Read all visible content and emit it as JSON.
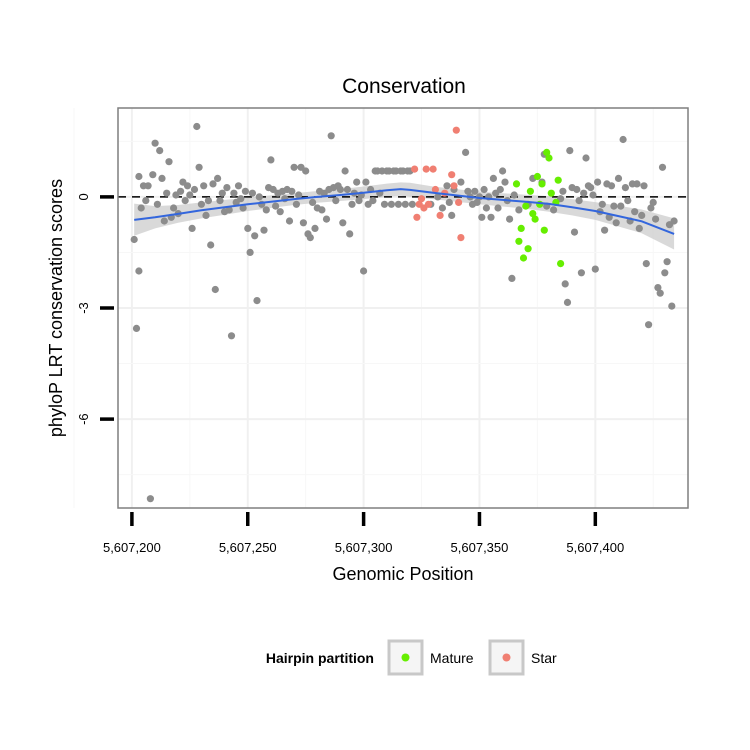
{
  "chart_data": {
    "type": "scatter",
    "title": "Conservation",
    "xlabel": "Genomic Position",
    "ylabel": "phyloP LRT conservation scores",
    "xlim": [
      5607194,
      5607440
    ],
    "ylim": [
      -8.4,
      2.4
    ],
    "x_ticks": [
      5607200,
      5607250,
      5607300,
      5607350,
      5607400
    ],
    "x_tick_labels": [
      "5,607,200",
      "5,607,250",
      "5,607,300",
      "5,607,350",
      "5,607,400"
    ],
    "y_ticks": [
      0,
      -3,
      -6
    ],
    "y_tick_labels": [
      "0",
      "-3",
      "-6"
    ],
    "grid": true,
    "reference_line": {
      "y": 0,
      "style": "dashed"
    },
    "colors": {
      "other": "#8c8c8c",
      "Mature": "#66ee00",
      "Star": "#f07f72",
      "smooth": "#3366dd",
      "band": "#cccccc"
    },
    "legend": {
      "title": "Hairpin partition",
      "position": "bottom",
      "entries": [
        {
          "label": "Mature",
          "color": "#66ee00"
        },
        {
          "label": "Star",
          "color": "#f07f72"
        }
      ]
    },
    "series": [
      {
        "values": [
          [
            5607201,
            -1.15
          ],
          [
            5607202,
            -3.55
          ],
          [
            5607203,
            -2.0
          ],
          [
            5607203,
            0.55
          ],
          [
            5607204,
            -0.3
          ],
          [
            5607205,
            0.3
          ],
          [
            5607206,
            -0.1
          ],
          [
            5607207,
            0.3
          ],
          [
            5607208,
            -8.15
          ],
          [
            5607209,
            0.6
          ],
          [
            5607210,
            1.45
          ],
          [
            5607211,
            -0.2
          ],
          [
            5607212,
            1.25
          ],
          [
            5607213,
            0.5
          ],
          [
            5607214,
            -0.65
          ],
          [
            5607215,
            0.1
          ],
          [
            5607216,
            0.95
          ],
          [
            5607217,
            -0.55
          ],
          [
            5607218,
            -0.3
          ],
          [
            5607219,
            0.05
          ],
          [
            5607220,
            -0.45
          ],
          [
            5607221,
            0.15
          ],
          [
            5607222,
            0.4
          ],
          [
            5607223,
            -0.1
          ],
          [
            5607224,
            0.3
          ],
          [
            5607225,
            0.05
          ],
          [
            5607226,
            -0.85
          ],
          [
            5607227,
            0.2
          ],
          [
            5607228,
            1.9
          ],
          [
            5607229,
            0.8
          ],
          [
            5607230,
            -0.2
          ],
          [
            5607231,
            0.3
          ],
          [
            5607232,
            -0.5
          ],
          [
            5607233,
            -0.1
          ],
          [
            5607234,
            -1.3
          ],
          [
            5607235,
            0.35
          ],
          [
            5607236,
            -2.5
          ],
          [
            5607237,
            0.5
          ],
          [
            5607238,
            -0.1
          ],
          [
            5607239,
            0.1
          ],
          [
            5607240,
            -0.4
          ],
          [
            5607241,
            0.25
          ],
          [
            5607242,
            -0.35
          ],
          [
            5607243,
            -3.75
          ],
          [
            5607244,
            0.1
          ],
          [
            5607245,
            -0.15
          ],
          [
            5607246,
            0.3
          ],
          [
            5607247,
            -0.05
          ],
          [
            5607248,
            -0.3
          ],
          [
            5607249,
            0.15
          ],
          [
            5607250,
            -0.85
          ],
          [
            5607251,
            -1.5
          ],
          [
            5607252,
            0.1
          ],
          [
            5607253,
            -1.05
          ],
          [
            5607254,
            -2.8
          ],
          [
            5607255,
            0.0
          ],
          [
            5607256,
            -0.2
          ],
          [
            5607257,
            -0.9
          ],
          [
            5607258,
            -0.35
          ],
          [
            5607259,
            0.25
          ],
          [
            5607260,
            1.0
          ],
          [
            5607261,
            0.2
          ],
          [
            5607262,
            -0.25
          ],
          [
            5607263,
            0.1
          ],
          [
            5607264,
            -0.4
          ],
          [
            5607265,
            0.15
          ],
          [
            5607266,
            -0.05
          ],
          [
            5607267,
            0.2
          ],
          [
            5607268,
            -0.65
          ],
          [
            5607269,
            0.15
          ],
          [
            5607270,
            0.8
          ],
          [
            5607271,
            -0.2
          ],
          [
            5607272,
            0.05
          ],
          [
            5607273,
            0.8
          ],
          [
            5607274,
            -0.7
          ],
          [
            5607275,
            0.7
          ],
          [
            5607276,
            -1.0
          ],
          [
            5607277,
            -1.1
          ],
          [
            5607278,
            -0.15
          ],
          [
            5607279,
            -0.85
          ],
          [
            5607280,
            -0.3
          ],
          [
            5607281,
            0.15
          ],
          [
            5607282,
            -0.35
          ],
          [
            5607283,
            0.1
          ],
          [
            5607284,
            -0.6
          ],
          [
            5607285,
            0.2
          ],
          [
            5607286,
            1.65
          ],
          [
            5607287,
            0.25
          ],
          [
            5607288,
            -0.1
          ],
          [
            5607289,
            0.3
          ],
          [
            5607290,
            0.2
          ],
          [
            5607291,
            -0.7
          ],
          [
            5607292,
            0.7
          ],
          [
            5607293,
            0.2
          ],
          [
            5607294,
            -1.0
          ],
          [
            5607295,
            -0.2
          ],
          [
            5607296,
            0.1
          ],
          [
            5607297,
            0.4
          ],
          [
            5607298,
            -0.1
          ],
          [
            5607299,
            0.05
          ],
          [
            5607300,
            -2.0
          ],
          [
            5607301,
            0.4
          ],
          [
            5607302,
            -0.2
          ],
          [
            5607303,
            0.2
          ],
          [
            5607304,
            -0.1
          ],
          [
            5607305,
            0.7
          ],
          [
            5607306,
            0.7
          ],
          [
            5607307,
            0.1
          ],
          [
            5607308,
            0.7
          ],
          [
            5607309,
            -0.2
          ],
          [
            5607310,
            0.7
          ],
          [
            5607311,
            0.7
          ],
          [
            5607312,
            -0.2
          ],
          [
            5607313,
            0.7
          ],
          [
            5607314,
            0.7
          ],
          [
            5607315,
            -0.2
          ],
          [
            5607316,
            0.7
          ],
          [
            5607317,
            0.7
          ],
          [
            5607318,
            -0.2
          ],
          [
            5607319,
            0.7
          ],
          [
            5607320,
            0.7
          ],
          [
            5607321,
            -0.2
          ],
          [
            5607329,
            -0.2
          ],
          [
            5607332,
            0.0
          ],
          [
            5607334,
            -0.3
          ],
          [
            5607336,
            0.3
          ],
          [
            5607337,
            -0.15
          ],
          [
            5607338,
            -0.5
          ],
          [
            5607339,
            0.2
          ],
          [
            5607342,
            0.4
          ],
          [
            5607344,
            1.2
          ],
          [
            5607345,
            0.15
          ],
          [
            5607346,
            0.0
          ],
          [
            5607347,
            -0.2
          ],
          [
            5607348,
            0.15
          ],
          [
            5607349,
            -0.15
          ],
          [
            5607350,
            0.0
          ],
          [
            5607351,
            -0.55
          ],
          [
            5607352,
            0.2
          ],
          [
            5607353,
            -0.3
          ],
          [
            5607354,
            0.0
          ],
          [
            5607355,
            -0.55
          ],
          [
            5607356,
            0.5
          ],
          [
            5607357,
            0.1
          ],
          [
            5607358,
            -0.3
          ],
          [
            5607359,
            0.2
          ],
          [
            5607360,
            0.7
          ],
          [
            5607361,
            0.4
          ],
          [
            5607362,
            -0.1
          ],
          [
            5607363,
            -0.6
          ],
          [
            5607364,
            -2.2
          ],
          [
            5607365,
            0.05
          ],
          [
            5607367,
            -0.35
          ],
          [
            5607371,
            -0.2
          ],
          [
            5607373,
            0.5
          ],
          [
            5607377,
            0.4
          ],
          [
            5607378,
            1.15
          ],
          [
            5607379,
            -0.25
          ],
          [
            5607382,
            -0.35
          ],
          [
            5607385,
            -0.05
          ],
          [
            5607386,
            0.15
          ],
          [
            5607387,
            -2.35
          ],
          [
            5607388,
            -2.85
          ],
          [
            5607389,
            1.25
          ],
          [
            5607390,
            0.25
          ],
          [
            5607391,
            -0.95
          ],
          [
            5607392,
            0.2
          ],
          [
            5607393,
            -0.1
          ],
          [
            5607394,
            -2.05
          ],
          [
            5607395,
            0.1
          ],
          [
            5607396,
            1.05
          ],
          [
            5607397,
            0.3
          ],
          [
            5607398,
            0.25
          ],
          [
            5607399,
            0.05
          ],
          [
            5607400,
            -1.95
          ],
          [
            5607401,
            0.4
          ],
          [
            5607402,
            -0.4
          ],
          [
            5607403,
            -0.2
          ],
          [
            5607404,
            -0.9
          ],
          [
            5607405,
            0.35
          ],
          [
            5607406,
            -0.55
          ],
          [
            5607407,
            0.3
          ],
          [
            5607408,
            -0.25
          ],
          [
            5607409,
            -0.7
          ],
          [
            5607410,
            0.5
          ],
          [
            5607411,
            -0.25
          ],
          [
            5607412,
            1.55
          ],
          [
            5607413,
            0.25
          ],
          [
            5607414,
            -0.1
          ],
          [
            5607415,
            -0.65
          ],
          [
            5607416,
            0.35
          ],
          [
            5607417,
            -0.4
          ],
          [
            5607418,
            0.35
          ],
          [
            5607419,
            -0.85
          ],
          [
            5607420,
            -0.5
          ],
          [
            5607421,
            0.3
          ],
          [
            5607422,
            -1.8
          ],
          [
            5607423,
            -3.45
          ],
          [
            5607424,
            -0.3
          ],
          [
            5607425,
            -0.15
          ],
          [
            5607426,
            -0.6
          ],
          [
            5607427,
            -2.45
          ],
          [
            5607428,
            -2.6
          ],
          [
            5607429,
            0.8
          ],
          [
            5607430,
            -2.05
          ],
          [
            5607431,
            -1.75
          ],
          [
            5607432,
            -0.75
          ],
          [
            5607433,
            -2.95
          ],
          [
            5607434,
            -0.65
          ]
        ]
      },
      {
        "name": "Star",
        "values": [
          [
            5607322,
            0.75
          ],
          [
            5607323,
            -0.55
          ],
          [
            5607324,
            -0.2
          ],
          [
            5607325,
            -0.05
          ],
          [
            5607326,
            -0.3
          ],
          [
            5607327,
            0.75
          ],
          [
            5607328,
            -0.2
          ],
          [
            5607330,
            0.75
          ],
          [
            5607331,
            0.2
          ],
          [
            5607333,
            -0.5
          ],
          [
            5607335,
            0.1
          ],
          [
            5607338,
            0.6
          ],
          [
            5607339,
            0.3
          ],
          [
            5607340,
            1.8
          ],
          [
            5607341,
            -0.15
          ],
          [
            5607342,
            -1.1
          ]
        ]
      },
      {
        "name": "Mature",
        "values": [
          [
            5607366,
            0.35
          ],
          [
            5607367,
            -1.2
          ],
          [
            5607368,
            -0.85
          ],
          [
            5607369,
            -1.65
          ],
          [
            5607370,
            -0.25
          ],
          [
            5607371,
            -1.4
          ],
          [
            5607372,
            0.15
          ],
          [
            5607373,
            -0.45
          ],
          [
            5607374,
            -0.6
          ],
          [
            5607375,
            0.55
          ],
          [
            5607376,
            -0.2
          ],
          [
            5607377,
            0.35
          ],
          [
            5607378,
            -0.9
          ],
          [
            5607379,
            1.2
          ],
          [
            5607380,
            1.05
          ],
          [
            5607381,
            0.1
          ],
          [
            5607383,
            -0.15
          ],
          [
            5607384,
            0.45
          ],
          [
            5607385,
            -1.8
          ]
        ]
      }
    ],
    "smooth": {
      "x": [
        5607201,
        5607210,
        5607220,
        5607230,
        5607240,
        5607250,
        5607260,
        5607270,
        5607280,
        5607290,
        5607300,
        5607310,
        5607316,
        5607320,
        5607330,
        5607340,
        5607350,
        5607360,
        5607370,
        5607380,
        5607390,
        5607400,
        5607410,
        5607420,
        5607434
      ],
      "y": [
        -0.62,
        -0.55,
        -0.46,
        -0.36,
        -0.28,
        -0.2,
        -0.13,
        -0.06,
        0.0,
        0.05,
        0.11,
        0.18,
        0.21,
        0.19,
        0.11,
        0.04,
        -0.03,
        -0.08,
        -0.13,
        -0.19,
        -0.28,
        -0.38,
        -0.52,
        -0.66,
        -1.0
      ],
      "lower": [
        -1.05,
        -0.85,
        -0.7,
        -0.58,
        -0.48,
        -0.38,
        -0.3,
        -0.22,
        -0.16,
        -0.11,
        -0.06,
        0.0,
        0.03,
        0.0,
        -0.06,
        -0.13,
        -0.2,
        -0.26,
        -0.32,
        -0.4,
        -0.5,
        -0.62,
        -0.8,
        -0.98,
        -1.42
      ],
      "upper": [
        -0.18,
        -0.25,
        -0.22,
        -0.15,
        -0.08,
        -0.02,
        0.04,
        0.1,
        0.16,
        0.21,
        0.28,
        0.36,
        0.39,
        0.38,
        0.28,
        0.21,
        0.14,
        0.1,
        0.06,
        0.02,
        -0.06,
        -0.14,
        -0.24,
        -0.34,
        -0.58
      ]
    }
  }
}
